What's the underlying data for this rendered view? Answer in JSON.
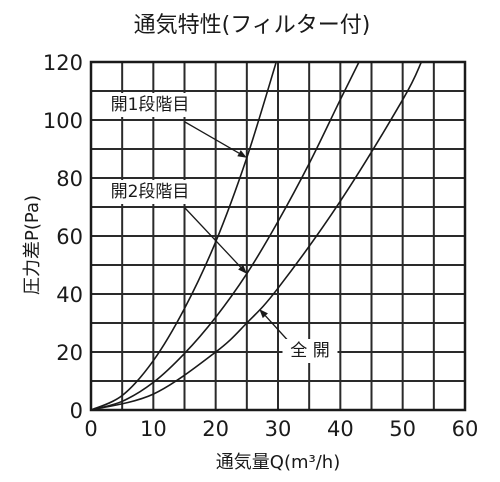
{
  "chart_data": {
    "type": "line",
    "title": "通気特性(フィルター付)",
    "xlabel": "通気量Q(m³/h)",
    "ylabel": "圧力差P(Pa)",
    "xlim": [
      0,
      60
    ],
    "ylim": [
      0,
      120
    ],
    "x_ticks": [
      "0",
      "10",
      "20",
      "30",
      "40",
      "50",
      "60"
    ],
    "y_ticks": [
      "0",
      "20",
      "40",
      "60",
      "80",
      "100",
      "120"
    ],
    "grid": true,
    "series": [
      {
        "name": "開1段階目",
        "x": [
          0,
          5,
          10,
          15,
          20,
          25,
          30
        ],
        "y": [
          0,
          5,
          17,
          35,
          58,
          87,
          122
        ]
      },
      {
        "name": "開2段階目",
        "x": [
          0,
          5,
          10,
          15,
          20,
          25,
          30,
          35,
          40,
          43
        ],
        "y": [
          0,
          3,
          9.5,
          19.5,
          32,
          47,
          65,
          85,
          107,
          120
        ]
      },
      {
        "name": "全開",
        "x": [
          0,
          10,
          20,
          25,
          30,
          40,
          50,
          53
        ],
        "y": [
          0,
          5.5,
          20,
          30,
          42,
          72,
          107,
          120
        ]
      }
    ],
    "annotations": [
      {
        "text": "開1段階目",
        "target_series": 0,
        "target_x": 25,
        "target_y": 87
      },
      {
        "text": "開2段階目",
        "target_series": 1,
        "target_x": 25,
        "target_y": 47
      },
      {
        "text": "全 開",
        "target_series": 2,
        "target_x": 27,
        "target_y": 35
      }
    ]
  }
}
